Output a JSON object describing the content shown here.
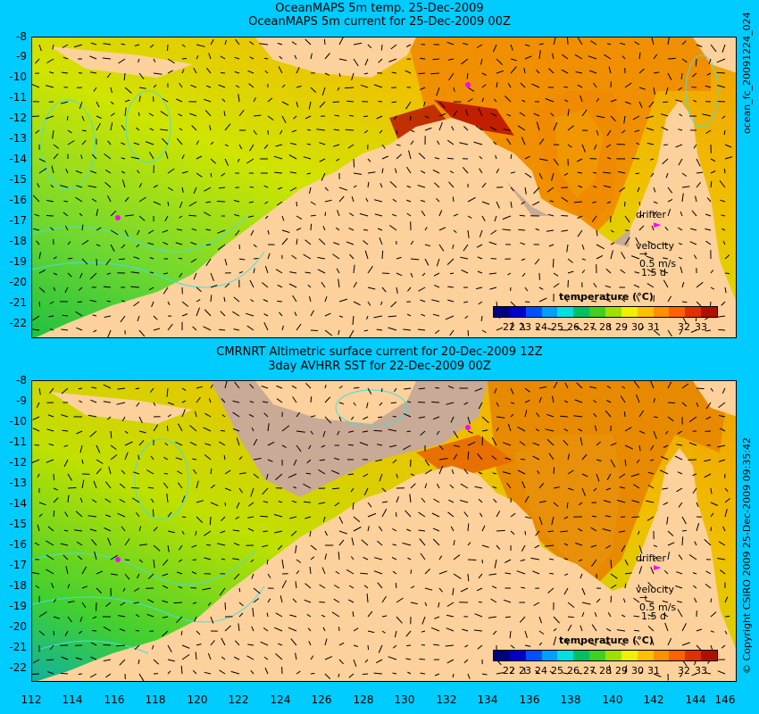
{
  "top": {
    "title_line1": "OceanMAPS 5m temp. 25-Dec-2009",
    "title_line2": "OceanMAPS 5m current for 25-Dec-2009 00Z",
    "side_label": "ocean_fc_20091224_024"
  },
  "bottom": {
    "title_line1": "CMRNRT Altimetric surface current for 20-Dec-2009 12Z",
    "title_line2": "3day AVHRR SST for 22-Dec-2009 00Z",
    "side_label": "© Copyright CSIRO 2009   25-Dec-2009 09:35:42"
  },
  "axes": {
    "y_ticks": [
      "-8",
      "-9",
      "-10",
      "-11",
      "-12",
      "-13",
      "-14",
      "-15",
      "-16",
      "-17",
      "-18",
      "-19",
      "-20",
      "-21",
      "-22"
    ],
    "x_ticks": [
      "112",
      "114",
      "116",
      "118",
      "120",
      "122",
      "124",
      "126",
      "128",
      "130",
      "132",
      "134",
      "136",
      "138",
      "140",
      "142",
      "144",
      "146"
    ],
    "xlim": [
      112,
      146
    ],
    "ylim": [
      -22.5,
      -8
    ]
  },
  "legend": {
    "title": "temperature (°C)",
    "ticks": [
      "22",
      "23",
      "24",
      "25",
      "26",
      "27",
      "28",
      "29",
      "30",
      "31",
      "32",
      "33"
    ],
    "colors": [
      "#000080",
      "#0000c8",
      "#0050ff",
      "#00a0ff",
      "#00e0e0",
      "#00c060",
      "#40d020",
      "#a0e000",
      "#f0f000",
      "#ffc000",
      "#ff9000",
      "#ff6000",
      "#e03000",
      "#b01000"
    ]
  },
  "annotations": {
    "drifter": "drifter",
    "velocity": "velocity",
    "speed": "0.5 m/s",
    "duration": "1.5 d"
  },
  "colors": {
    "background": "#00ccff",
    "land": "#fdd19c",
    "missing": "#c8aa96",
    "drifter": "#ff00ff"
  }
}
